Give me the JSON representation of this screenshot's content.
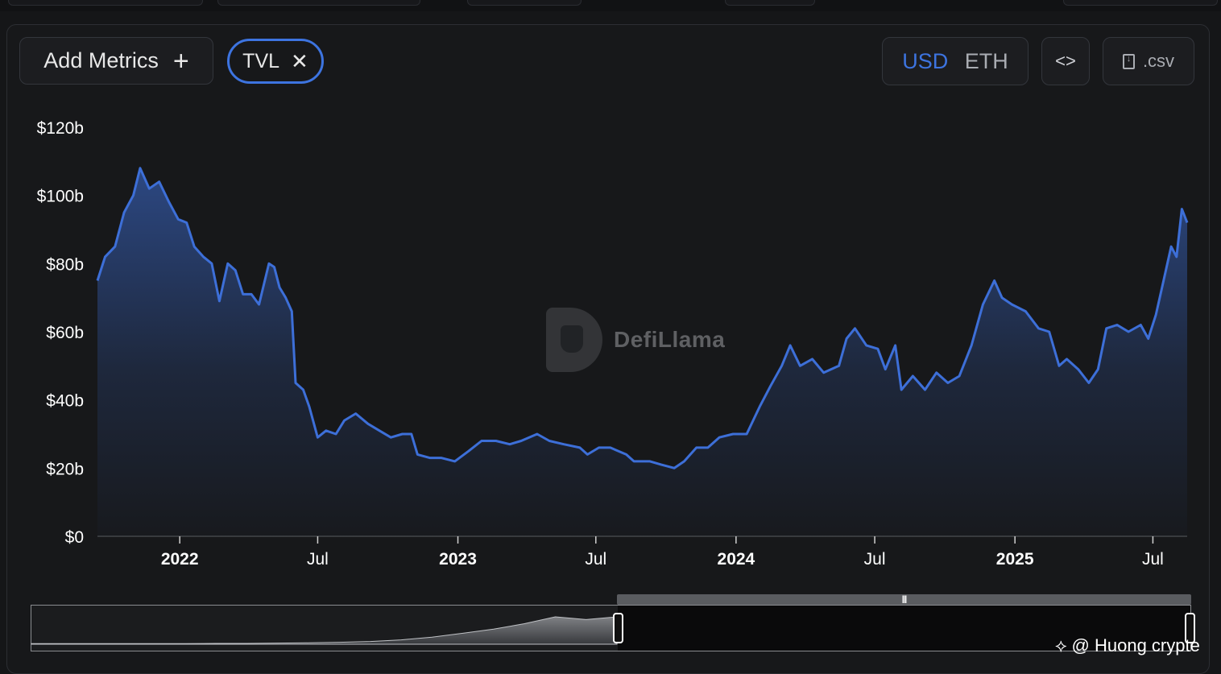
{
  "toolbar": {
    "add_metrics_label": "Add Metrics",
    "add_icon": "+",
    "metric_chip_label": "TVL",
    "remove_icon": "✕",
    "currency_options": [
      "USD",
      "ETH"
    ],
    "currency_selected": "USD",
    "embed_icon_glyph": "<>",
    "csv_label": ".csv"
  },
  "watermark": {
    "text": "DefiLlama"
  },
  "credit": {
    "icon_glyph": "⟡",
    "text": "@ Huong crypte"
  },
  "colors": {
    "accent": "#3d74e0",
    "background": "#151618",
    "line": "#3d6fd8"
  },
  "chart_data": {
    "type": "area",
    "title": "",
    "xlabel": "",
    "ylabel": "",
    "y_tick_labels": [
      "$0",
      "$20b",
      "$40b",
      "$60b",
      "$80b",
      "$100b",
      "$120b"
    ],
    "y_tick_values": [
      0,
      20,
      40,
      60,
      80,
      100,
      120
    ],
    "ylim": [
      0,
      120
    ],
    "x_tick_labels": [
      {
        "label": "2022",
        "date": "2022-01-01",
        "bold": true
      },
      {
        "label": "Jul",
        "date": "2022-07-01",
        "bold": false
      },
      {
        "label": "2023",
        "date": "2023-01-01",
        "bold": true
      },
      {
        "label": "Jul",
        "date": "2023-07-01",
        "bold": false
      },
      {
        "label": "2024",
        "date": "2024-01-01",
        "bold": true
      },
      {
        "label": "Jul",
        "date": "2024-07-01",
        "bold": false
      },
      {
        "label": "2025",
        "date": "2025-01-01",
        "bold": true
      },
      {
        "label": "Jul",
        "date": "2025-07-01",
        "bold": false
      }
    ],
    "xlim": [
      "2021-09-15",
      "2025-08-15"
    ],
    "grid": false,
    "legend": "none",
    "series": [
      {
        "unit": "USD billions",
        "points": [
          [
            "2021-09-15",
            75
          ],
          [
            "2021-09-25",
            82
          ],
          [
            "2021-10-08",
            85
          ],
          [
            "2021-10-20",
            95
          ],
          [
            "2021-11-01",
            100
          ],
          [
            "2021-11-10",
            108
          ],
          [
            "2021-11-22",
            102
          ],
          [
            "2021-12-05",
            104
          ],
          [
            "2021-12-18",
            98
          ],
          [
            "2021-12-30",
            93
          ],
          [
            "2022-01-10",
            92
          ],
          [
            "2022-01-20",
            85
          ],
          [
            "2022-02-01",
            82
          ],
          [
            "2022-02-12",
            80
          ],
          [
            "2022-02-22",
            69
          ],
          [
            "2022-03-05",
            80
          ],
          [
            "2022-03-15",
            78
          ],
          [
            "2022-03-25",
            71
          ],
          [
            "2022-04-05",
            71
          ],
          [
            "2022-04-15",
            68
          ],
          [
            "2022-04-28",
            80
          ],
          [
            "2022-05-05",
            79
          ],
          [
            "2022-05-12",
            73
          ],
          [
            "2022-05-20",
            70
          ],
          [
            "2022-05-28",
            66
          ],
          [
            "2022-06-02",
            45
          ],
          [
            "2022-06-12",
            43
          ],
          [
            "2022-06-20",
            38
          ],
          [
            "2022-07-01",
            29
          ],
          [
            "2022-07-12",
            31
          ],
          [
            "2022-07-25",
            30
          ],
          [
            "2022-08-05",
            34
          ],
          [
            "2022-08-20",
            36
          ],
          [
            "2022-09-05",
            33
          ],
          [
            "2022-09-20",
            31
          ],
          [
            "2022-10-05",
            29
          ],
          [
            "2022-10-20",
            30
          ],
          [
            "2022-11-01",
            30
          ],
          [
            "2022-11-09",
            24
          ],
          [
            "2022-11-25",
            23
          ],
          [
            "2022-12-10",
            23
          ],
          [
            "2022-12-28",
            22
          ],
          [
            "2023-01-15",
            25
          ],
          [
            "2023-02-01",
            28
          ],
          [
            "2023-02-20",
            28
          ],
          [
            "2023-03-10",
            27
          ],
          [
            "2023-03-25",
            28
          ],
          [
            "2023-04-15",
            30
          ],
          [
            "2023-05-01",
            28
          ],
          [
            "2023-05-20",
            27
          ],
          [
            "2023-06-10",
            26
          ],
          [
            "2023-06-20",
            24
          ],
          [
            "2023-07-05",
            26
          ],
          [
            "2023-07-20",
            26
          ],
          [
            "2023-08-10",
            24
          ],
          [
            "2023-08-20",
            22
          ],
          [
            "2023-09-10",
            22
          ],
          [
            "2023-09-25",
            21
          ],
          [
            "2023-10-12",
            20
          ],
          [
            "2023-10-25",
            22
          ],
          [
            "2023-11-10",
            26
          ],
          [
            "2023-11-25",
            26
          ],
          [
            "2023-12-10",
            29
          ],
          [
            "2023-12-28",
            30
          ],
          [
            "2024-01-15",
            30
          ],
          [
            "2024-02-01",
            38
          ],
          [
            "2024-02-15",
            44
          ],
          [
            "2024-03-01",
            50
          ],
          [
            "2024-03-12",
            56
          ],
          [
            "2024-03-25",
            50
          ],
          [
            "2024-04-10",
            52
          ],
          [
            "2024-04-25",
            48
          ],
          [
            "2024-05-15",
            50
          ],
          [
            "2024-05-25",
            58
          ],
          [
            "2024-06-05",
            61
          ],
          [
            "2024-06-20",
            56
          ],
          [
            "2024-07-05",
            55
          ],
          [
            "2024-07-15",
            49
          ],
          [
            "2024-07-28",
            56
          ],
          [
            "2024-08-05",
            43
          ],
          [
            "2024-08-20",
            47
          ],
          [
            "2024-09-05",
            43
          ],
          [
            "2024-09-20",
            48
          ],
          [
            "2024-10-05",
            45
          ],
          [
            "2024-10-20",
            47
          ],
          [
            "2024-11-05",
            56
          ],
          [
            "2024-11-20",
            68
          ],
          [
            "2024-12-05",
            75
          ],
          [
            "2024-12-15",
            70
          ],
          [
            "2024-12-28",
            68
          ],
          [
            "2025-01-15",
            66
          ],
          [
            "2025-02-01",
            61
          ],
          [
            "2025-02-15",
            60
          ],
          [
            "2025-02-28",
            50
          ],
          [
            "2025-03-10",
            52
          ],
          [
            "2025-03-25",
            49
          ],
          [
            "2025-04-08",
            45
          ],
          [
            "2025-04-20",
            49
          ],
          [
            "2025-05-01",
            61
          ],
          [
            "2025-05-15",
            62
          ],
          [
            "2025-05-30",
            60
          ],
          [
            "2025-06-15",
            62
          ],
          [
            "2025-06-25",
            58
          ],
          [
            "2025-07-05",
            65
          ],
          [
            "2025-07-15",
            75
          ],
          [
            "2025-07-25",
            85
          ],
          [
            "2025-08-01",
            82
          ],
          [
            "2025-08-08",
            96
          ],
          [
            "2025-08-15",
            92
          ]
        ]
      }
    ]
  }
}
